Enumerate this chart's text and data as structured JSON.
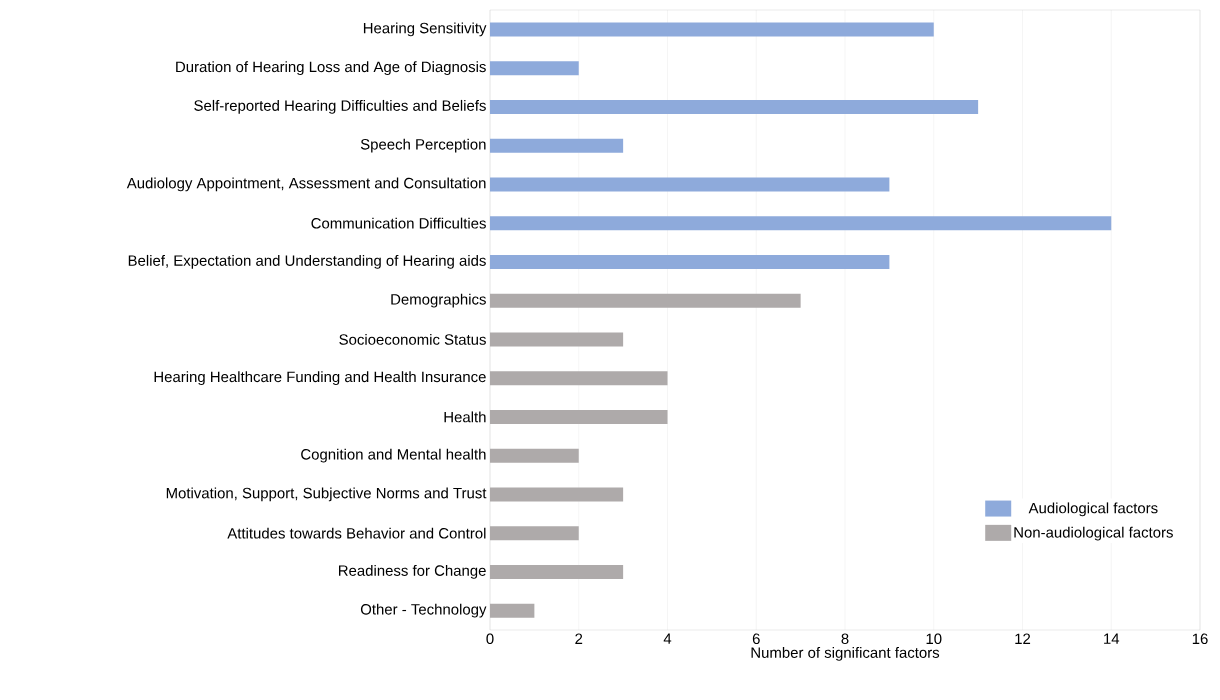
{
  "chart_data": {
    "type": "bar",
    "orientation": "horizontal",
    "xlabel": "Number of significant factors",
    "categories": [
      "Hearing Sensitivity",
      "Duration of Hearing Loss and Age of Diagnosis",
      "Self-reported Hearing Difficulties and Beliefs",
      "Speech Perception",
      "Audiology Appointment, Assessment and Consultation",
      "Communication Difficulties",
      "Belief, Expectation and Understanding of Hearing aids",
      "Demographics",
      "Socioeconomic Status",
      "Hearing Healthcare Funding and Health Insurance",
      "Health",
      "Cognition and Mental health",
      "Motivation, Support, Subjective Norms and Trust",
      "Attitudes towards Behavior and Control",
      "Readiness for Change",
      "Other - Technology"
    ],
    "series": [
      {
        "name": "Audiological factors",
        "color": "#8eaadb",
        "values": [
          10,
          2,
          11,
          3,
          9,
          14,
          9,
          null,
          null,
          null,
          null,
          null,
          null,
          null,
          null,
          null
        ]
      },
      {
        "name": "Non-audiological factors",
        "color": "#aeaaaa",
        "values": [
          null,
          null,
          null,
          null,
          null,
          null,
          null,
          7,
          3,
          4,
          4,
          2,
          3,
          2,
          3,
          1
        ]
      }
    ],
    "xlim": [
      0,
      16
    ],
    "xticks": [
      0,
      2,
      4,
      6,
      8,
      10,
      12,
      14,
      16
    ],
    "grid": "x",
    "legend": "bottom right"
  }
}
